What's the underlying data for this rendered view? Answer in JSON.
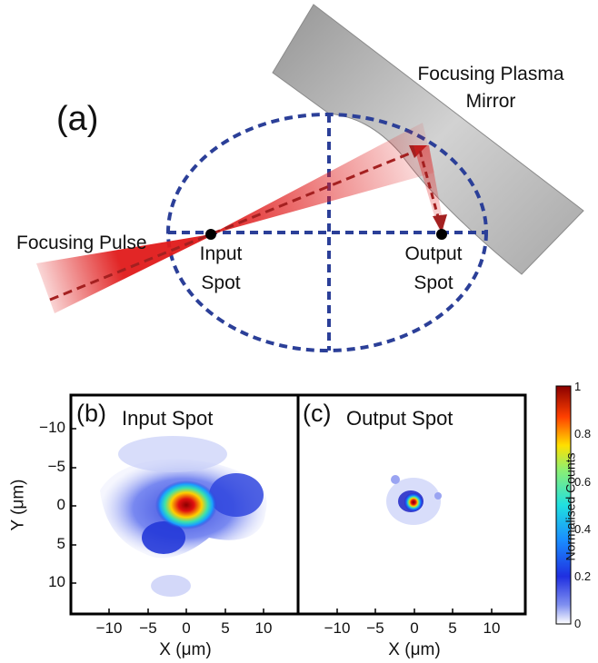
{
  "panel_a": {
    "label": "(a)",
    "mirror_label_line1": "Focusing Plasma",
    "mirror_label_line2": "Mirror",
    "pulse_label": "Focusing Pulse",
    "input_line1": "Input",
    "input_line2": "Spot",
    "output_line1": "Output",
    "output_line2": "Spot",
    "colors": {
      "ellipse": "#2b3f98",
      "beam": "#e01b1b",
      "mirror": "#b8b8b8"
    }
  },
  "panel_b": {
    "label": "(b)",
    "title": "Input Spot"
  },
  "panel_c": {
    "label": "(c)",
    "title": "Output Spot"
  },
  "axes": {
    "y_label": "Y (μm)",
    "x_label_b": "X (μm)",
    "x_label_c": "X (μm)",
    "y_ticks": [
      "−10",
      "−5",
      "0",
      "5",
      "10"
    ],
    "x_ticks_b": [
      "−10",
      "−5",
      "0",
      "5",
      "10"
    ],
    "x_ticks_c": [
      "−10",
      "−5",
      "0",
      "5",
      "10"
    ]
  },
  "colorbar": {
    "label": "Normalised Counts",
    "ticks": [
      "1",
      "0.8",
      "0.6",
      "0.4",
      "0.2",
      "0"
    ]
  }
}
